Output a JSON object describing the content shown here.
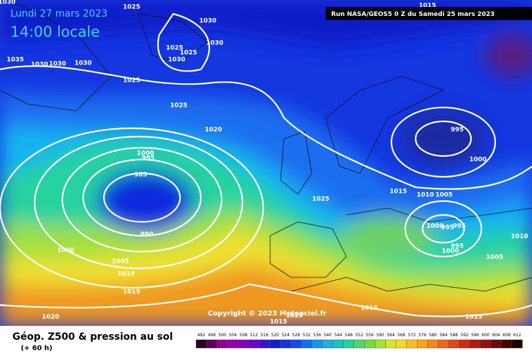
{
  "header": {
    "date": "Lundi 27 mars 2023",
    "time": "14:00 locale",
    "run": "Run NASA/GEOS5 0 Z du Samedi 25 mars 2023"
  },
  "copyright": "Copyright © 2023 Meteociel.fr",
  "footer": {
    "title": "Géop. Z500 & pression au sol",
    "subtitle": "(+ 60 h)"
  },
  "scale": {
    "labels": [
      "492",
      "496",
      "500",
      "504",
      "508",
      "512",
      "516",
      "520",
      "524",
      "528",
      "532",
      "536",
      "540",
      "544",
      "548",
      "552",
      "556",
      "560",
      "564",
      "568",
      "572",
      "576",
      "580",
      "584",
      "588",
      "592",
      "596",
      "600",
      "604",
      "608",
      "612"
    ]
  },
  "isobar_labels": [
    "1030",
    "1025",
    "1030",
    "1030",
    "1025",
    "1025",
    "1030",
    "1035",
    "1030",
    "1030",
    "1030",
    "1025",
    "1025",
    "1020",
    "995",
    "1000",
    "995",
    "1000",
    "985",
    "1015",
    "1010",
    "1005",
    "1025",
    "1000",
    "995",
    "995",
    "990",
    "1000",
    "995",
    "1000",
    "1010",
    "1005",
    "1005",
    "1010",
    "1015",
    "1015",
    "1015",
    "1020",
    "1020",
    "1015",
    "1015"
  ]
}
